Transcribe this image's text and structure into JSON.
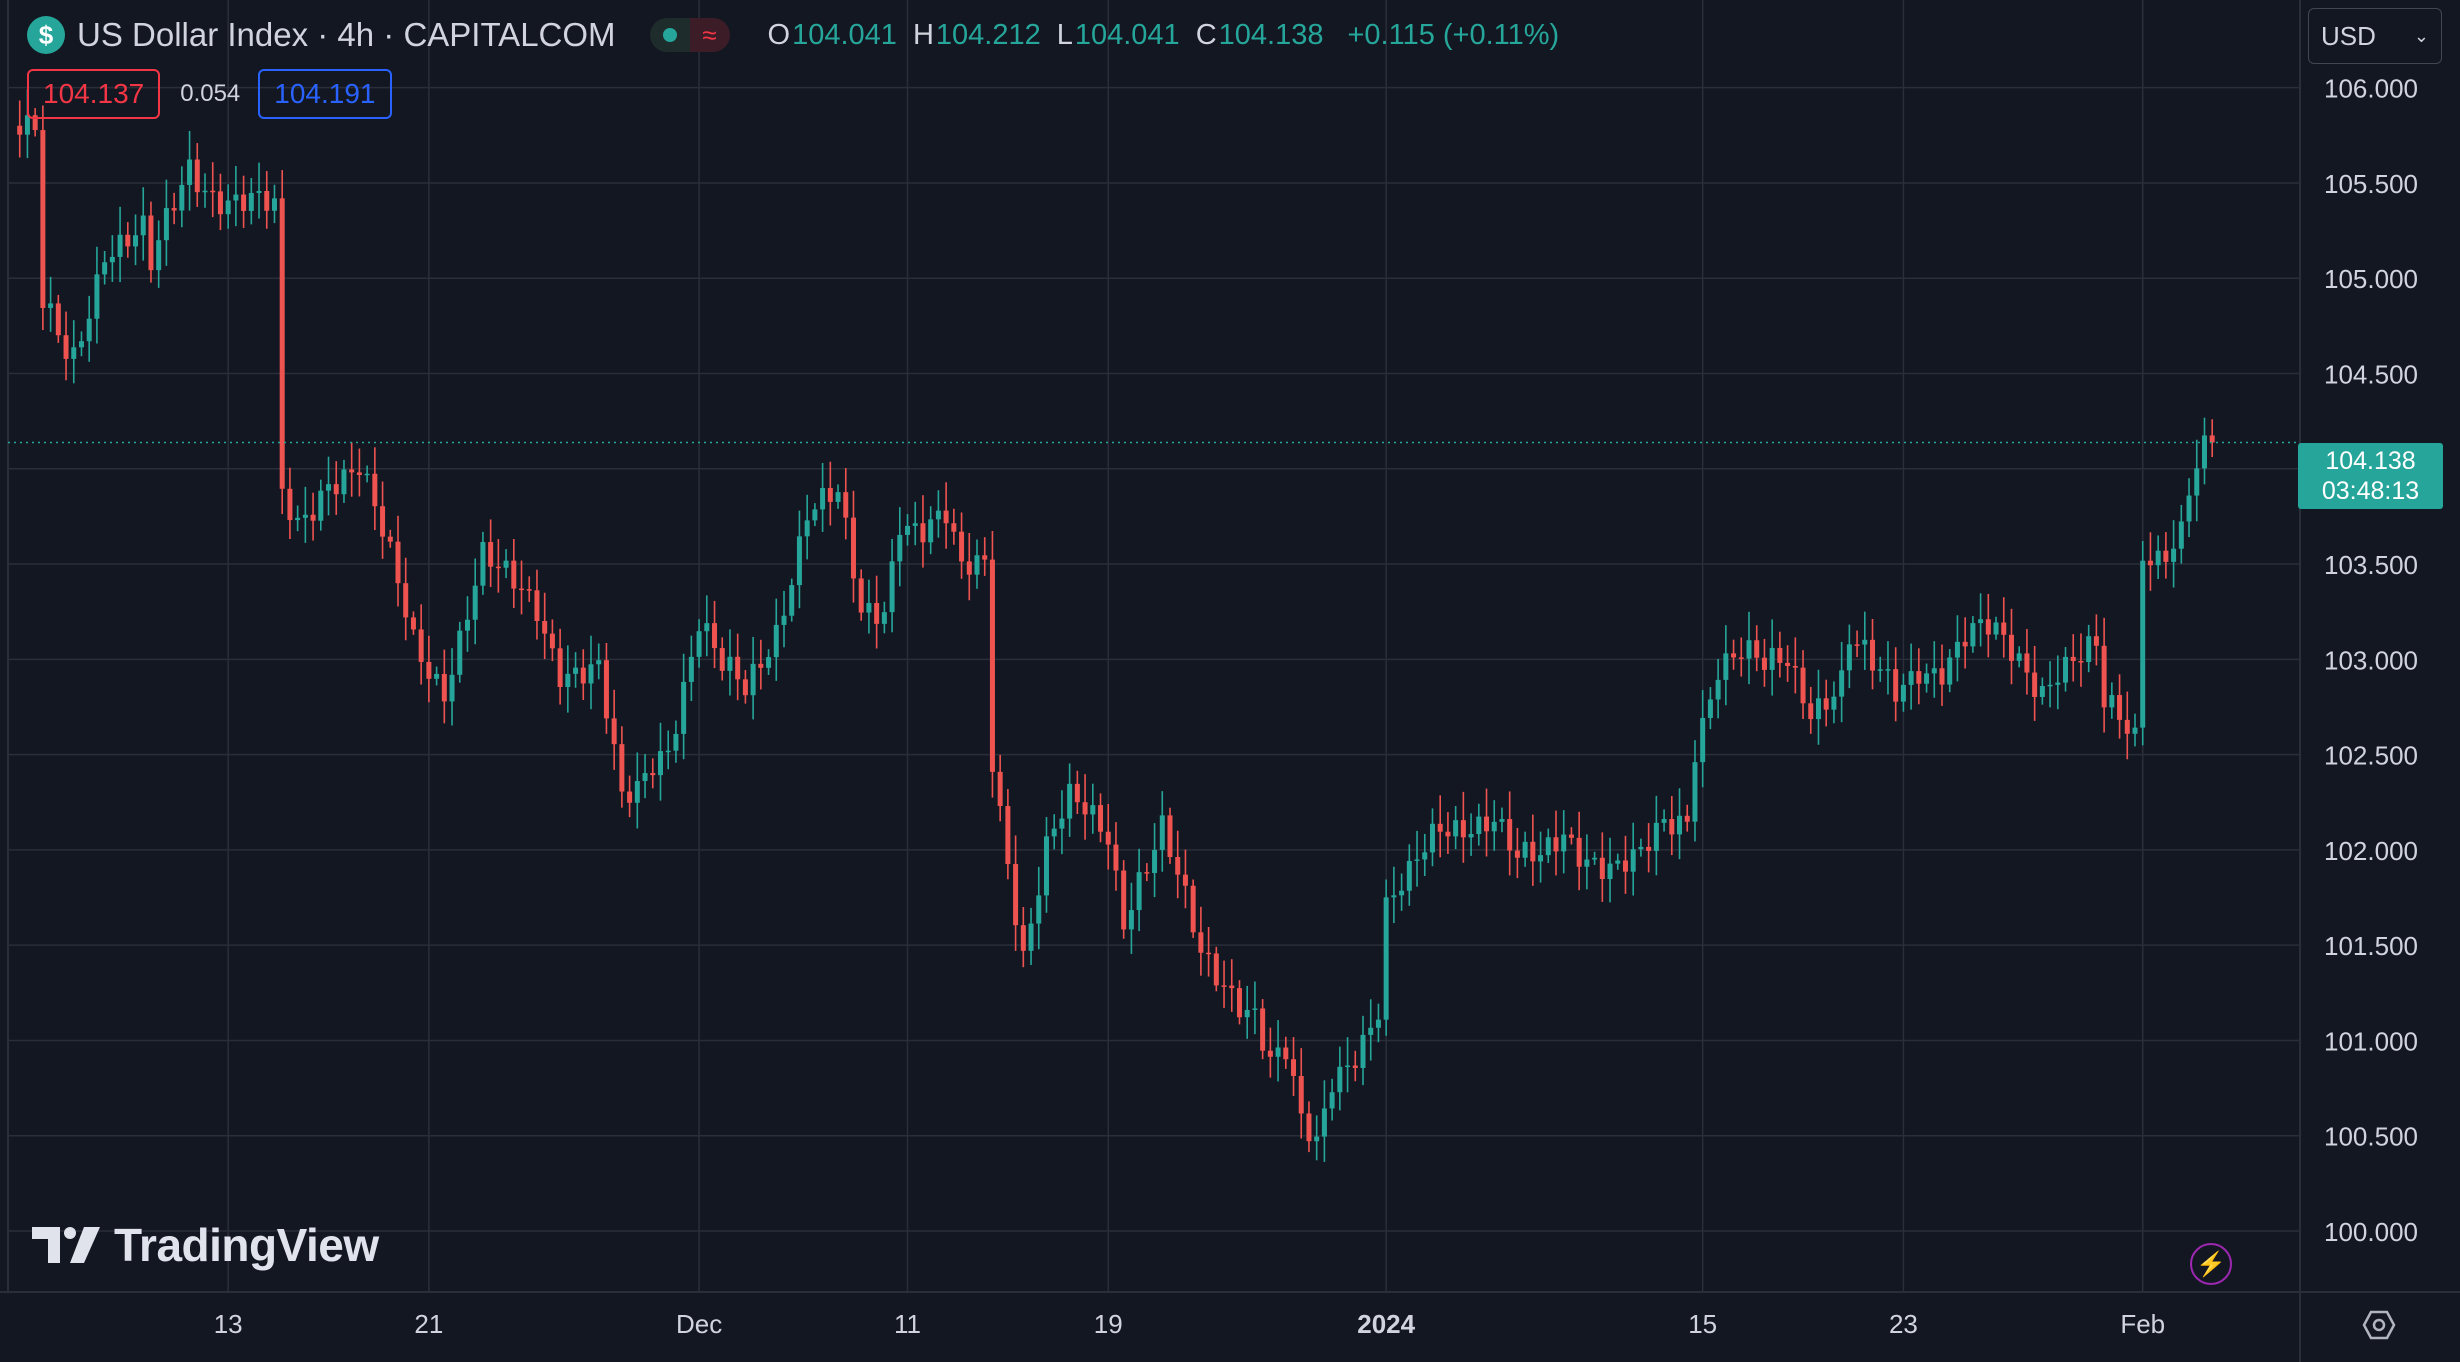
{
  "header": {
    "symbol_icon": "dollar-icon",
    "symbol_glyph": "$",
    "title": "US Dollar Index · 4h · CAPITALCOM",
    "status_glyph": "≈",
    "ohlc": {
      "o_label": "O",
      "o_value": "104.041",
      "h_label": "H",
      "h_value": "104.212",
      "l_label": "L",
      "l_value": "104.041",
      "c_label": "C",
      "c_value": "104.138",
      "change": "+0.115 (+0.11%)"
    },
    "bid": "104.137",
    "spread": "0.054",
    "ask": "104.191"
  },
  "currency": "USD",
  "last_price": {
    "price": "104.138",
    "countdown": "03:48:13"
  },
  "logo": "TradingView",
  "colors": {
    "background": "#131722",
    "grid": "#2a2e39",
    "up": "#26a69a",
    "down": "#ef5350",
    "bid": "#f23645",
    "ask": "#2962ff"
  },
  "chart_data": {
    "type": "candlestick",
    "title": "US Dollar Index · 4h · CAPITALCOM",
    "y_ticks": [
      "106.000",
      "105.500",
      "105.000",
      "104.500",
      "104.000",
      "103.500",
      "103.000",
      "102.500",
      "102.000",
      "101.500",
      "101.000",
      "100.500",
      "100.000"
    ],
    "y_tick_values": [
      106,
      105.5,
      105,
      104.5,
      104,
      103.5,
      103,
      102.5,
      102,
      101.5,
      101,
      100.5,
      100
    ],
    "ylim": [
      99.68,
      106.46
    ],
    "x_ticks": [
      {
        "label": "13",
        "bar": 28,
        "bold": false
      },
      {
        "label": "21",
        "bar": 54,
        "bold": false
      },
      {
        "label": "Dec",
        "bar": 89,
        "bold": false
      },
      {
        "label": "11",
        "bar": 116,
        "bold": false
      },
      {
        "label": "19",
        "bar": 142,
        "bold": false
      },
      {
        "label": "2024",
        "bar": 178,
        "bold": true
      },
      {
        "label": "15",
        "bar": 219,
        "bold": false
      },
      {
        "label": "23",
        "bar": 245,
        "bold": false
      },
      {
        "label": "Feb",
        "bar": 276,
        "bold": false
      }
    ],
    "n_bars": 288,
    "anchors": [
      [
        0,
        105.8
      ],
      [
        3,
        105.7
      ],
      [
        4,
        104.8
      ],
      [
        7,
        104.6
      ],
      [
        8,
        104.6
      ],
      [
        12,
        105.2
      ],
      [
        17,
        105.2
      ],
      [
        18,
        105.0
      ],
      [
        23,
        105.6
      ],
      [
        26,
        105.5
      ],
      [
        30,
        105.4
      ],
      [
        34,
        105.3
      ],
      [
        35,
        103.8
      ],
      [
        37,
        103.7
      ],
      [
        41,
        104.0
      ],
      [
        45,
        104.0
      ],
      [
        48,
        103.6
      ],
      [
        52,
        103.1
      ],
      [
        56,
        102.9
      ],
      [
        61,
        103.5
      ],
      [
        63,
        103.4
      ],
      [
        68,
        103.3
      ],
      [
        71,
        103.0
      ],
      [
        76,
        102.9
      ],
      [
        79,
        102.2
      ],
      [
        81,
        102.3
      ],
      [
        83,
        102.5
      ],
      [
        85,
        102.6
      ],
      [
        89,
        103.2
      ],
      [
        92,
        102.9
      ],
      [
        95,
        102.8
      ],
      [
        99,
        103.2
      ],
      [
        103,
        103.8
      ],
      [
        107,
        103.8
      ],
      [
        110,
        103.2
      ],
      [
        113,
        103.3
      ],
      [
        115,
        103.8
      ],
      [
        118,
        103.7
      ],
      [
        121,
        103.7
      ],
      [
        123,
        103.4
      ],
      [
        126,
        103.5
      ],
      [
        127,
        102.5
      ],
      [
        129,
        102.0
      ],
      [
        131,
        101.5
      ],
      [
        134,
        102.0
      ],
      [
        137,
        102.2
      ],
      [
        142,
        102.1
      ],
      [
        144,
        101.7
      ],
      [
        146,
        101.9
      ],
      [
        149,
        102.1
      ],
      [
        151,
        101.8
      ],
      [
        154,
        101.4
      ],
      [
        158,
        101.3
      ],
      [
        161,
        101.2
      ],
      [
        163,
        100.9
      ],
      [
        165,
        100.9
      ],
      [
        167,
        100.5
      ],
      [
        169,
        100.4
      ],
      [
        170,
        100.6
      ],
      [
        171,
        100.8
      ],
      [
        174,
        101.0
      ],
      [
        177,
        101.2
      ],
      [
        178,
        101.7
      ],
      [
        181,
        101.8
      ],
      [
        185,
        102.1
      ],
      [
        189,
        102.2
      ],
      [
        192,
        102.2
      ],
      [
        195,
        101.9
      ],
      [
        198,
        101.9
      ],
      [
        201,
        102.1
      ],
      [
        205,
        102.0
      ],
      [
        208,
        101.9
      ],
      [
        211,
        101.9
      ],
      [
        214,
        102.1
      ],
      [
        217,
        102.2
      ],
      [
        218,
        102.6
      ],
      [
        221,
        103.0
      ],
      [
        224,
        103.0
      ],
      [
        227,
        102.9
      ],
      [
        230,
        103.0
      ],
      [
        233,
        102.8
      ],
      [
        237,
        102.9
      ],
      [
        238,
        103.1
      ],
      [
        241,
        102.9
      ],
      [
        244,
        102.8
      ],
      [
        247,
        103.0
      ],
      [
        250,
        103.0
      ],
      [
        253,
        103.1
      ],
      [
        256,
        103.1
      ],
      [
        260,
        103.0
      ],
      [
        263,
        102.9
      ],
      [
        265,
        103.0
      ],
      [
        270,
        103.0
      ],
      [
        271,
        102.7
      ],
      [
        275,
        102.6
      ],
      [
        276,
        103.6
      ],
      [
        278,
        103.6
      ],
      [
        281,
        103.7
      ],
      [
        282,
        103.9
      ],
      [
        284,
        104.05
      ],
      [
        285,
        104.138
      ]
    ],
    "last_close": 104.138
  }
}
